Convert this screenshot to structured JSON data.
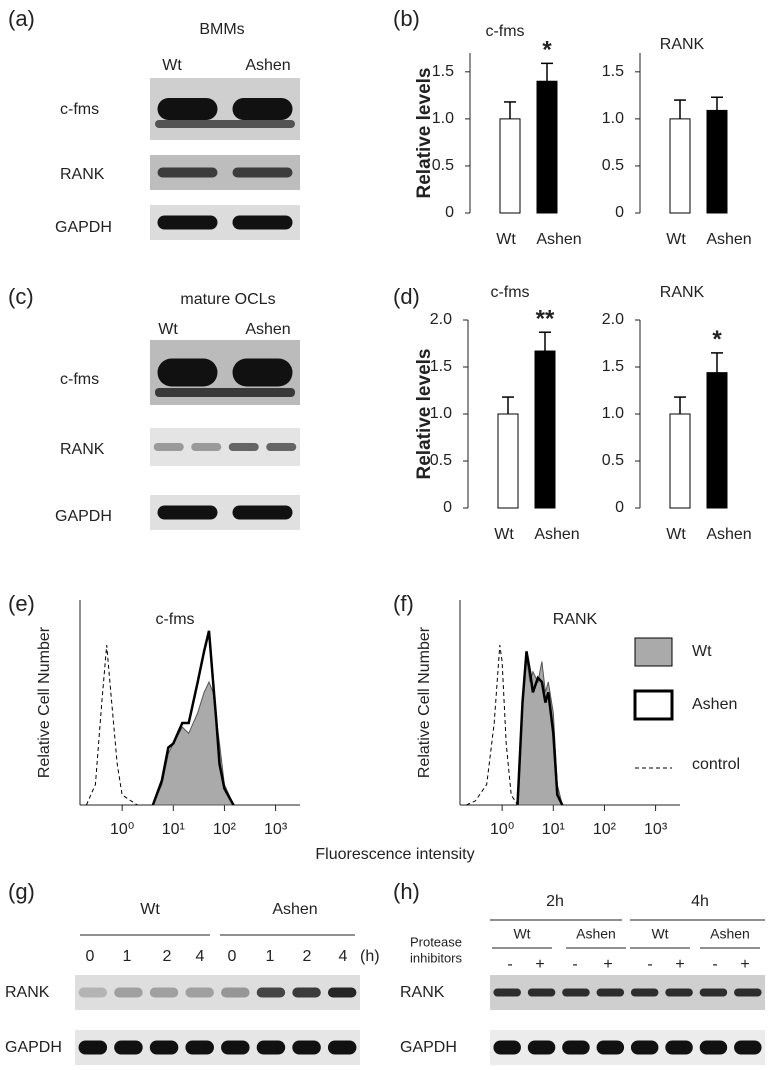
{
  "panels": {
    "a": {
      "label": "(a)",
      "title": "BMMs",
      "columns": [
        "Wt",
        "Ashen"
      ],
      "rows": [
        "c-fms",
        "RANK",
        "GAPDH"
      ]
    },
    "c": {
      "label": "(c)",
      "title": "mature OCLs",
      "columns": [
        "Wt",
        "Ashen"
      ],
      "rows": [
        "c-fms",
        "RANK",
        "GAPDH"
      ]
    },
    "g": {
      "label": "(g)",
      "groups": [
        "Wt",
        "Ashen"
      ],
      "lanes": [
        "0",
        "1",
        "2",
        "4",
        "0",
        "1",
        "2",
        "4"
      ],
      "unit": "(h)",
      "rows": [
        "RANK",
        "GAPDH"
      ]
    },
    "h": {
      "label": "(h)",
      "times": [
        "2h",
        "4h"
      ],
      "groups": [
        "Wt",
        "Ashen",
        "Wt",
        "Ashen"
      ],
      "treatment_label": [
        "Protease",
        "inhibitors"
      ],
      "lanes": [
        "-",
        "+",
        "-",
        "+",
        "-",
        "+",
        "-",
        "+"
      ],
      "rows": [
        "RANK",
        "GAPDH"
      ]
    }
  },
  "chart_data": [
    {
      "type": "bar",
      "panel_label": "(b)",
      "title": "c-fms",
      "y_label": "Relative levels",
      "categories": [
        "Wt",
        "Ashen"
      ],
      "values": [
        1.0,
        1.4
      ],
      "errors": [
        0.18,
        0.19
      ],
      "colors": [
        "#ffffff",
        "#000000"
      ],
      "annotations": [
        null,
        "*"
      ],
      "ylim": [
        0,
        1.7
      ],
      "yticks": [
        0,
        0.5,
        {
          "value": 1,
          "label": "1.0"
        },
        1.5
      ]
    },
    {
      "type": "bar",
      "title": "RANK",
      "categories": [
        "Wt",
        "Ashen"
      ],
      "values": [
        1.0,
        1.09
      ],
      "errors": [
        0.2,
        0.14
      ],
      "colors": [
        "#ffffff",
        "#000000"
      ],
      "ylim": [
        0,
        1.7
      ],
      "yticks": [
        0,
        0.5,
        {
          "value": 1,
          "label": "1.0"
        },
        1.5
      ]
    },
    {
      "type": "bar",
      "panel_label": "(d)",
      "title": "c-fms",
      "y_label": "Relative levels",
      "categories": [
        "Wt",
        "Ashen"
      ],
      "values": [
        1.0,
        1.67
      ],
      "errors": [
        0.18,
        0.2
      ],
      "colors": [
        "#ffffff",
        "#000000"
      ],
      "annotations": [
        null,
        "**"
      ],
      "ylim": [
        0,
        2.0
      ],
      "yticks": [
        0,
        0.5,
        {
          "value": 1,
          "label": "1.0"
        },
        1.5,
        {
          "value": 2,
          "label": "2.0"
        }
      ]
    },
    {
      "type": "bar",
      "title": "RANK",
      "categories": [
        "Wt",
        "Ashen"
      ],
      "values": [
        1.0,
        1.44
      ],
      "errors": [
        0.18,
        0.21
      ],
      "colors": [
        "#ffffff",
        "#000000"
      ],
      "annotations": [
        null,
        "*"
      ],
      "ylim": [
        0,
        2.0
      ],
      "yticks": [
        0,
        0.5,
        {
          "value": 1,
          "label": "1.0"
        },
        1.5,
        {
          "value": 2,
          "label": "2.0"
        }
      ]
    },
    {
      "type": "area",
      "panel_label": "(e)",
      "title": "c-fms",
      "y_label": "Relative Cell Number",
      "x_label": "Fluorescence intensity",
      "log_x": true,
      "xlim": [
        0.15,
        3000
      ],
      "ylim": [
        0,
        1
      ],
      "xticks": [
        {
          "value": 1,
          "label": "10⁰"
        },
        {
          "value": 10,
          "label": "10¹"
        },
        {
          "value": 100,
          "label": "10²"
        },
        {
          "value": 1000,
          "label": "10³"
        }
      ],
      "series": [
        {
          "style": "dashed",
          "color": "#000000",
          "x": [
            0.2,
            0.3,
            0.4,
            0.5,
            0.6,
            0.8,
            1.0,
            1.3,
            2
          ],
          "values": [
            0,
            0.1,
            0.5,
            0.78,
            0.55,
            0.2,
            0.05,
            0.03,
            0
          ]
        },
        {
          "style": "filled",
          "color": "#aaaaaa",
          "x": [
            4,
            6,
            8,
            10,
            15,
            20,
            30,
            40,
            50,
            60,
            80,
            100,
            150
          ],
          "values": [
            0,
            0.1,
            0.25,
            0.3,
            0.38,
            0.35,
            0.45,
            0.55,
            0.6,
            0.55,
            0.3,
            0.1,
            0
          ]
        },
        {
          "style": "outline",
          "color": "#000000",
          "x": [
            4,
            6,
            8,
            10,
            15,
            20,
            30,
            40,
            50,
            60,
            70,
            80,
            100,
            150
          ],
          "values": [
            0,
            0.12,
            0.28,
            0.3,
            0.4,
            0.4,
            0.6,
            0.75,
            0.85,
            0.6,
            0.4,
            0.2,
            0.08,
            0
          ]
        }
      ]
    },
    {
      "type": "area",
      "panel_label": "(f)",
      "title": "RANK",
      "y_label": "Relative Cell Number",
      "log_x": true,
      "xlim": [
        0.15,
        3000
      ],
      "ylim": [
        0,
        1
      ],
      "legend": "right",
      "xticks": [
        {
          "value": 1,
          "label": "10⁰"
        },
        {
          "value": 10,
          "label": "10¹"
        },
        {
          "value": 100,
          "label": "10²"
        },
        {
          "value": 1000,
          "label": "10³"
        }
      ],
      "series": [
        {
          "name": "control",
          "style": "dashed",
          "color": "#000000",
          "x": [
            0.2,
            0.3,
            0.5,
            0.7,
            0.9,
            1,
            1.2,
            1.5,
            2
          ],
          "values": [
            0,
            0.02,
            0.1,
            0.4,
            0.78,
            0.7,
            0.3,
            0.05,
            0
          ]
        },
        {
          "name": "Wt",
          "style": "filled",
          "color": "#aaaaaa",
          "x": [
            2,
            2.5,
            3,
            3.5,
            4,
            5,
            6,
            7,
            8,
            10,
            12,
            15
          ],
          "values": [
            0,
            0.5,
            0.72,
            0.6,
            0.65,
            0.6,
            0.7,
            0.55,
            0.6,
            0.45,
            0.1,
            0
          ]
        },
        {
          "name": "Ashen",
          "style": "outline",
          "color": "#000000",
          "x": [
            2,
            2.5,
            3,
            3.5,
            4,
            5,
            6,
            7,
            8,
            10,
            12,
            15
          ],
          "values": [
            0,
            0.5,
            0.75,
            0.65,
            0.55,
            0.62,
            0.6,
            0.5,
            0.55,
            0.35,
            0.05,
            0
          ]
        }
      ]
    }
  ]
}
